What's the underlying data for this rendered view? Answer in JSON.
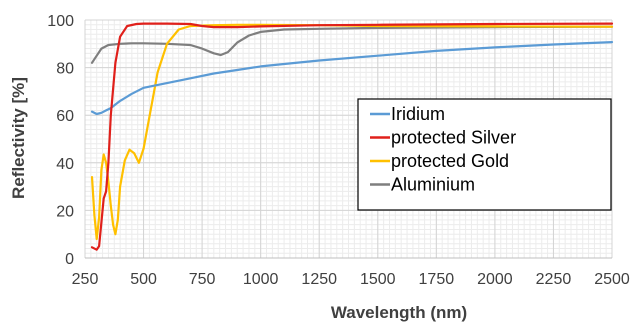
{
  "chart_data": {
    "type": "line",
    "title": "",
    "xlabel": "Wavelength (nm)",
    "ylabel": "Reflectivity [%]",
    "xlim": [
      250,
      2500
    ],
    "ylim": [
      0,
      100
    ],
    "x_ticks": [
      "250",
      "500",
      "750",
      "1000",
      "1250",
      "1500",
      "1750",
      "2000",
      "2250",
      "2500"
    ],
    "y_ticks": [
      "0",
      "20",
      "40",
      "60",
      "80",
      "100"
    ],
    "grid": "major and minor",
    "legend_position": "center-right",
    "series": [
      {
        "name": "Iridium",
        "color": "#5b9bd5",
        "x": [
          280,
          300,
          320,
          340,
          360,
          380,
          400,
          450,
          500,
          600,
          700,
          800,
          900,
          1000,
          1100,
          1250,
          1500,
          1750,
          2000,
          2250,
          2500
        ],
        "y": [
          61.5,
          60.5,
          61.0,
          62.0,
          63.0,
          64.5,
          66.0,
          69.0,
          71.5,
          73.5,
          75.5,
          77.5,
          79.0,
          80.5,
          81.5,
          83.0,
          85.0,
          87.0,
          88.5,
          89.7,
          90.7
        ]
      },
      {
        "name": "protected Silver",
        "color": "#e0201b",
        "x": [
          280,
          300,
          310,
          320,
          330,
          340,
          350,
          360,
          380,
          400,
          430,
          470,
          500,
          600,
          700,
          750,
          800,
          900,
          1000,
          1250,
          1500,
          2000,
          2500
        ],
        "y": [
          4.5,
          3.5,
          5.0,
          15.0,
          25.0,
          28.0,
          40.0,
          60.0,
          82.0,
          93.0,
          97.5,
          98.3,
          98.5,
          98.5,
          98.3,
          97.5,
          97.0,
          97.0,
          97.3,
          97.8,
          98.0,
          98.3,
          98.5
        ]
      },
      {
        "name": "protected Gold",
        "color": "#ffc000",
        "x": [
          280,
          290,
          300,
          310,
          320,
          330,
          340,
          350,
          360,
          370,
          380,
          390,
          400,
          420,
          440,
          460,
          480,
          500,
          530,
          560,
          600,
          650,
          700,
          800,
          900,
          1000,
          1250,
          1500,
          2000,
          2500
        ],
        "y": [
          34.0,
          18.0,
          8.0,
          17.0,
          37.0,
          43.5,
          40.0,
          32.0,
          22.0,
          14.0,
          10.0,
          16.0,
          30.0,
          41.0,
          45.5,
          44.0,
          40.0,
          46.0,
          62.0,
          78.0,
          90.0,
          96.0,
          97.5,
          97.8,
          98.0,
          98.0,
          97.8,
          97.5,
          97.3,
          97.2
        ]
      },
      {
        "name": "Aluminium",
        "color": "#7f7f7f",
        "x": [
          280,
          300,
          320,
          350,
          400,
          450,
          500,
          600,
          700,
          750,
          800,
          830,
          860,
          900,
          950,
          1000,
          1100,
          1250,
          1500,
          2000,
          2500
        ],
        "y": [
          82.0,
          85.0,
          88.0,
          89.5,
          90.0,
          90.2,
          90.2,
          90.0,
          89.5,
          88.0,
          86.0,
          85.3,
          86.5,
          90.5,
          93.5,
          95.0,
          96.0,
          96.3,
          96.7,
          97.0,
          97.2
        ]
      }
    ]
  }
}
